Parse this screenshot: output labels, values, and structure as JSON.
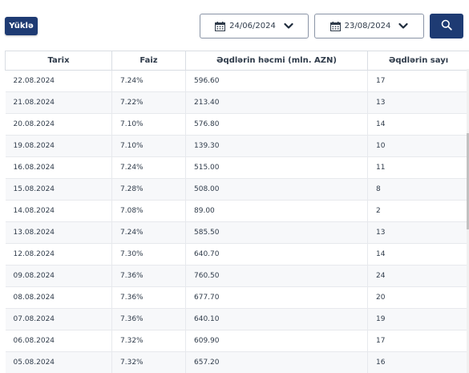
{
  "toolbar": {
    "download_label": "Yüklə",
    "date_from": "24/06/2024",
    "date_to": "23/08/2024"
  },
  "colors": {
    "accent": "#1e3b73"
  },
  "icons": {
    "calendar": "calendar-icon",
    "dropdown": "chevron-down-icon",
    "search": "search-icon"
  },
  "table": {
    "columns": [
      "Tarix",
      "Faiz",
      "Əqdlərin həcmi (mln. AZN)",
      "Əqdlərin sayı"
    ],
    "rows": [
      [
        "22.08.2024",
        "7.24%",
        "596.60",
        "17"
      ],
      [
        "21.08.2024",
        "7.22%",
        "213.40",
        "13"
      ],
      [
        "20.08.2024",
        "7.10%",
        "576.80",
        "14"
      ],
      [
        "19.08.2024",
        "7.10%",
        "139.30",
        "10"
      ],
      [
        "16.08.2024",
        "7.24%",
        "515.00",
        "11"
      ],
      [
        "15.08.2024",
        "7.28%",
        "508.00",
        "8"
      ],
      [
        "14.08.2024",
        "7.08%",
        "89.00",
        "2"
      ],
      [
        "13.08.2024",
        "7.24%",
        "585.50",
        "13"
      ],
      [
        "12.08.2024",
        "7.30%",
        "640.70",
        "14"
      ],
      [
        "09.08.2024",
        "7.36%",
        "760.50",
        "24"
      ],
      [
        "08.08.2024",
        "7.36%",
        "677.70",
        "20"
      ],
      [
        "07.08.2024",
        "7.36%",
        "640.10",
        "19"
      ],
      [
        "06.08.2024",
        "7.32%",
        "609.90",
        "17"
      ],
      [
        "05.08.2024",
        "7.32%",
        "657.20",
        "16"
      ]
    ]
  }
}
